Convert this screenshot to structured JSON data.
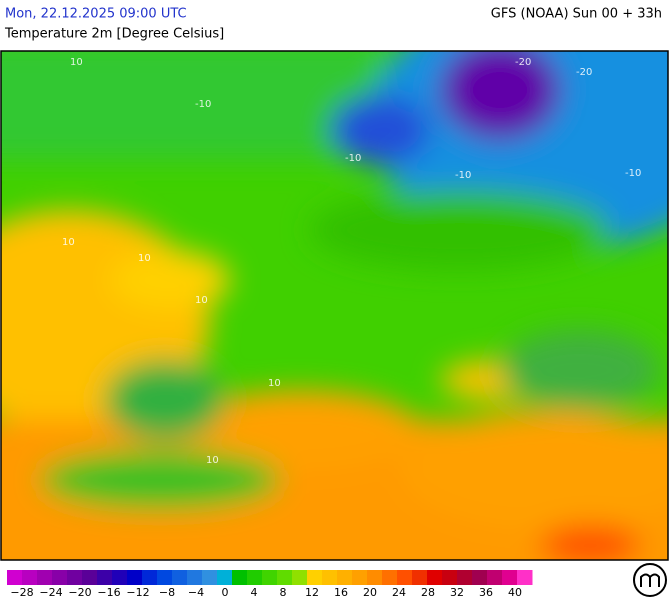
{
  "header": {
    "date": "Mon, 22.12.2025 09:00 UTC",
    "model": "GFS (NOAA) Sun 00 + 33h",
    "parameter": "Temperature 2m [Degree Celsius]"
  },
  "map": {
    "contour_labels": [
      "10",
      "10",
      "10",
      "10",
      "-10",
      "-10",
      "-10",
      "-20",
      "-20",
      "-10",
      "10",
      "10"
    ]
  },
  "legend": {
    "labels": [
      "−28",
      "−24",
      "−20",
      "−16",
      "−12",
      "−8",
      "−4",
      "0",
      "4",
      "8",
      "12",
      "16",
      "20",
      "24",
      "28",
      "32",
      "36",
      "40"
    ],
    "colors": [
      "#d000d0",
      "#b800c0",
      "#a000b0",
      "#8800a8",
      "#7000a0",
      "#5a0098",
      "#3c00a8",
      "#2000b8",
      "#0000c8",
      "#0028d8",
      "#0048e0",
      "#1060e0",
      "#2078e0",
      "#3090e0",
      "#00b0d8",
      "#00c000",
      "#20cc00",
      "#40d400",
      "#60dc00",
      "#90e000",
      "#ffd000",
      "#ffc000",
      "#ffb000",
      "#ffa000",
      "#ff8c00",
      "#ff7000",
      "#ff5000",
      "#f03000",
      "#e00000",
      "#c80010",
      "#b00030",
      "#a00050",
      "#c00070",
      "#e00090",
      "#ff30c8"
    ]
  }
}
